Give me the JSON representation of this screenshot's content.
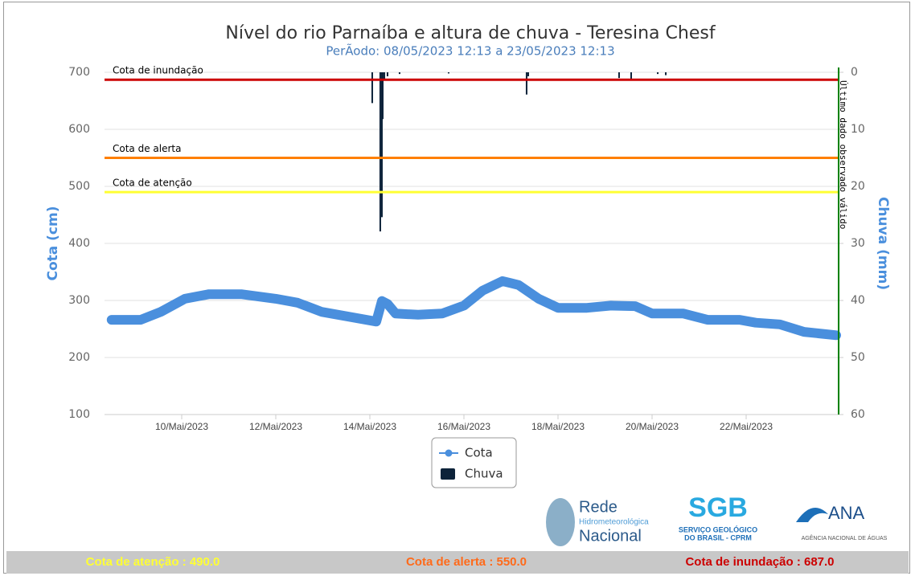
{
  "chart_data": {
    "type": "line",
    "title": "Nível do rio Parnaíba e altura de chuva - Teresina Chesf",
    "subtitle": "PerÃodo: 08/05/2023 12:13 a 23/05/2023 12:13",
    "ylabel": "Cota (cm)",
    "y2label": "Chuva (mm)",
    "annotation": "Último dado observado válido",
    "xlim": [
      "2023-05-08T08:37",
      "2023-05-23T23:11"
    ],
    "xticks": [
      {
        "value": "2023-05-10T00:00",
        "label": "10/Mai/2023"
      },
      {
        "value": "2023-05-12T00:00",
        "label": "12/Mai/2023"
      },
      {
        "value": "2023-05-14T00:00",
        "label": "14/Mai/2023"
      },
      {
        "value": "2023-05-16T00:00",
        "label": "16/Mai/2023"
      },
      {
        "value": "2023-05-18T00:00",
        "label": "18/Mai/2023"
      },
      {
        "value": "2023-05-20T00:00",
        "label": "20/Mai/2023"
      },
      {
        "value": "2023-05-22T00:00",
        "label": "22/Mai/2023"
      }
    ],
    "ylim": [
      100,
      700
    ],
    "yticks": [
      100,
      200,
      300,
      400,
      500,
      600,
      700
    ],
    "y2lim": [
      60,
      0
    ],
    "y2ticks": [
      0,
      10,
      20,
      30,
      40,
      50,
      60
    ],
    "grid": true,
    "series": [
      {
        "name": "Cota",
        "color": "#4a8fdd",
        "x": [
          "2023-05-08T12:13",
          "2023-05-09T03:04",
          "2023-05-09T13:20",
          "2023-05-10T01:38",
          "2023-05-10T13:56",
          "2023-05-11T06:21",
          "2023-05-12T00:00",
          "2023-05-12T11:05",
          "2023-05-12T23:23",
          "2023-05-13T15:47",
          "2023-05-14T03:17",
          "2023-05-14T06:09",
          "2023-05-14T09:01",
          "2023-05-14T13:07",
          "2023-05-15T00:37",
          "2023-05-15T12:55",
          "2023-05-16T00:00",
          "2023-05-16T09:26",
          "2023-05-16T19:41",
          "2023-05-17T03:53",
          "2023-05-17T14:10",
          "2023-05-18T00:00",
          "2023-05-18T14:46",
          "2023-05-19T03:04",
          "2023-05-19T15:23",
          "2023-05-20T00:00",
          "2023-05-20T16:00",
          "2023-05-21T04:19",
          "2023-05-21T20:43",
          "2023-05-22T04:55",
          "2023-05-22T17:14",
          "2023-05-23T05:32",
          "2023-05-23T21:58"
        ],
        "values": [
          266,
          266,
          280,
          303,
          311,
          311,
          303,
          296,
          280,
          270,
          263,
          299,
          294,
          277,
          275,
          277,
          291,
          317,
          334,
          327,
          303,
          287,
          287,
          291,
          290,
          277,
          277,
          266,
          266,
          261,
          258,
          245,
          239
        ]
      },
      {
        "name": "Chuva",
        "color": "#0d233a",
        "axis": "y2",
        "x": [
          "2023-05-14T01:13",
          "2023-05-14T05:19",
          "2023-05-14T06:09",
          "2023-05-14T06:34",
          "2023-05-14T07:24",
          "2023-05-14T09:01",
          "2023-05-14T15:10",
          "2023-05-15T16:12",
          "2023-05-17T07:59",
          "2023-05-17T08:49",
          "2023-05-19T07:10",
          "2023-05-19T13:20",
          "2023-05-20T02:53",
          "2023-05-20T06:59"
        ],
        "values": [
          5.4,
          27.9,
          25.4,
          8.2,
          1.4,
          0.7,
          0.3,
          0.2,
          3.9,
          0.7,
          1.0,
          1.4,
          0.3,
          0.5
        ]
      }
    ],
    "plot_lines": [
      {
        "label": "Cota de inundação",
        "value": 687,
        "color": "#cc0000"
      },
      {
        "label": "Cota de alerta",
        "value": 550,
        "color": "#ff7f00"
      },
      {
        "label": "Cota de atenção",
        "value": 490,
        "color": "#ffff33"
      }
    ]
  },
  "footer": [
    {
      "text": "Cota de atenção : 490.0",
      "color": "#ffff33"
    },
    {
      "text": "Cota de alerta : 550.0",
      "color": "#ff6a1a"
    },
    {
      "text": "Cota de inundação : 687.0",
      "color": "#cc0000"
    }
  ],
  "logos": {
    "rede": [
      "Rede",
      "Hidrometeorológica",
      "Nacional"
    ],
    "sgb": [
      "SGB",
      "SERVIÇO GEOLÓGICO",
      "DO BRASIL - CPRM"
    ],
    "ana": [
      "ANA",
      "AGÊNCIA NACIONAL DE ÁGUAS"
    ]
  }
}
